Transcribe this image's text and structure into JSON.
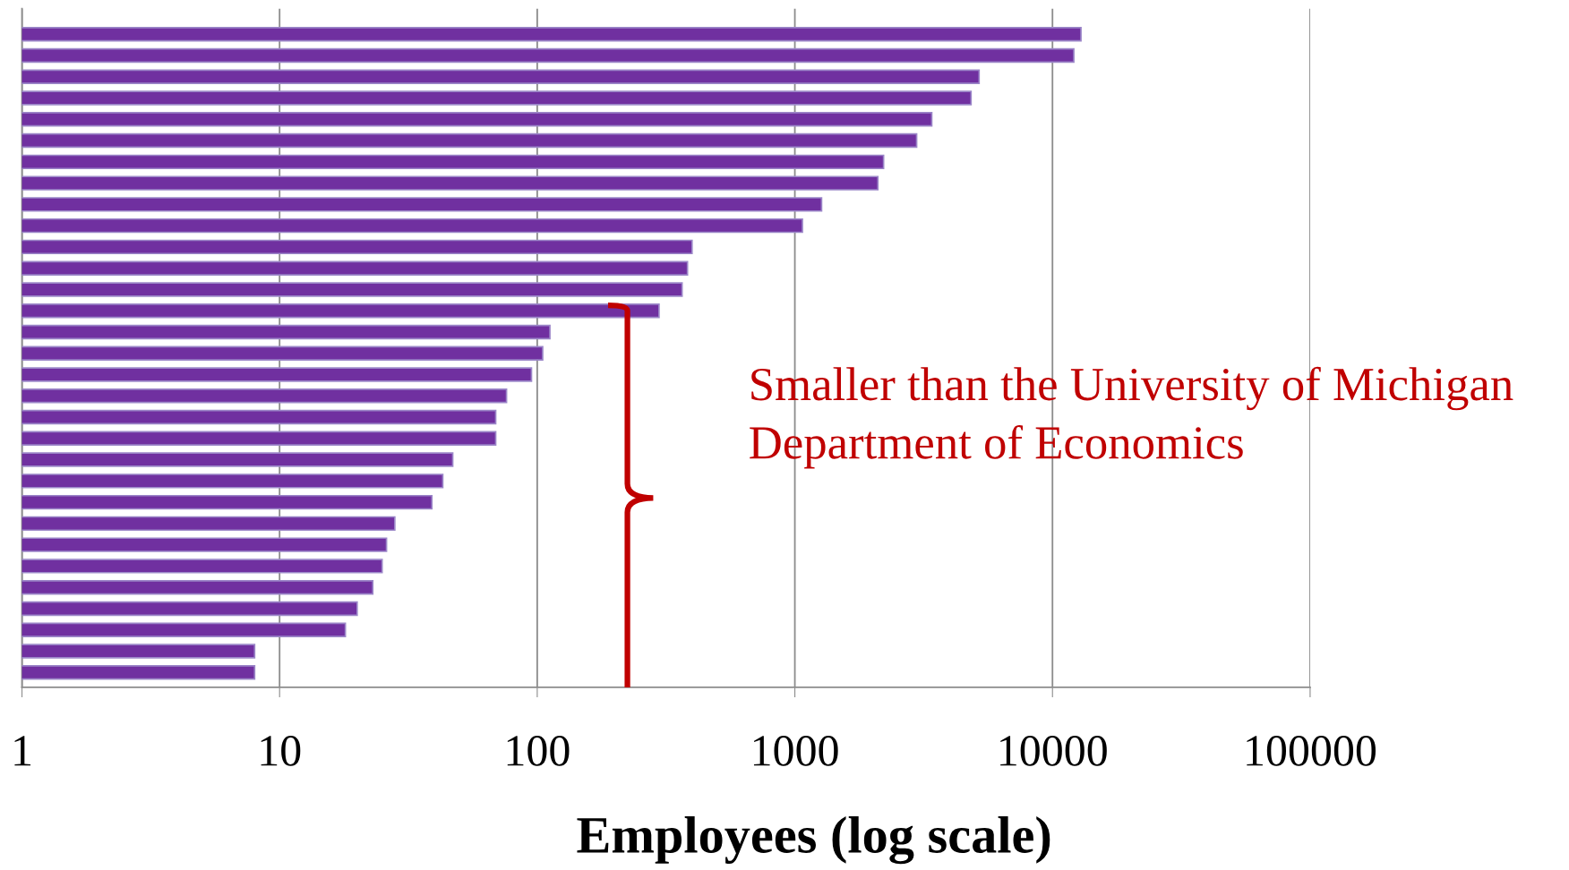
{
  "chart_data": {
    "type": "bar",
    "orientation": "horizontal",
    "log": "x",
    "xlabel": "Employees (log scale)",
    "categories": [
      null,
      null,
      null,
      null,
      null,
      null,
      null,
      null,
      null,
      null,
      null,
      null,
      null,
      null,
      null,
      null,
      null,
      null,
      null,
      null,
      null,
      null,
      null,
      null,
      null,
      null,
      null,
      null,
      null,
      null,
      null
    ],
    "values": [
      12900,
      12100,
      5190,
      4830,
      3400,
      2970,
      2210,
      2100,
      1270,
      1070,
      399,
      383,
      365,
      297,
      112,
      105,
      95,
      76,
      69,
      69,
      47,
      43,
      39,
      28,
      26,
      25,
      23,
      20,
      18,
      8,
      8
    ],
    "color": "#7030a0",
    "xlim": [
      1,
      100000
    ],
    "xticks": [
      1,
      10,
      100,
      1000,
      10000,
      100000
    ],
    "grid": "x",
    "tick_labels": "x",
    "annotations": [
      "Smaller than the University of Michigan Department of Economics"
    ]
  }
}
